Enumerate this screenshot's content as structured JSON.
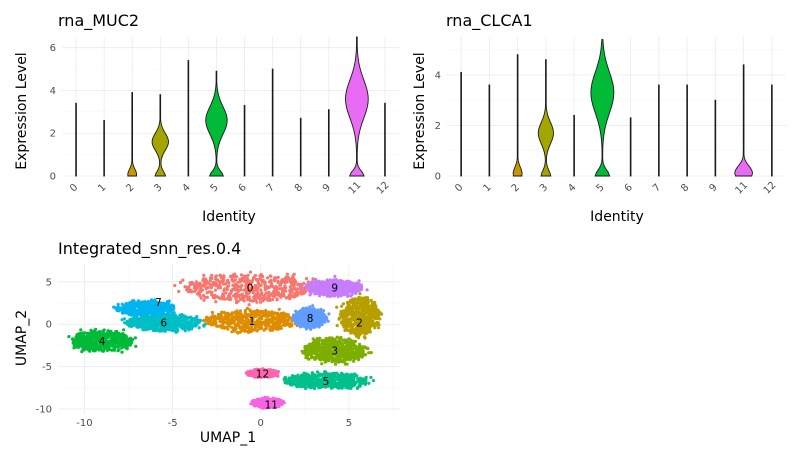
{
  "chart_data": [
    {
      "type": "violin",
      "title": "rna_MUC2",
      "xlabel": "Identity",
      "ylabel": "Expression Level",
      "categories": [
        "0",
        "1",
        "2",
        "3",
        "4",
        "5",
        "6",
        "7",
        "8",
        "9",
        "11",
        "12"
      ],
      "ylim": [
        0,
        6.5
      ],
      "yticks": [
        0,
        2,
        4,
        6
      ],
      "max_values": [
        3.4,
        2.6,
        3.9,
        3.8,
        5.4,
        4.9,
        3.3,
        5.0,
        2.7,
        3.1,
        6.5,
        3.4
      ],
      "shape_bulges": [
        0,
        0,
        0.12,
        1.6,
        0,
        2.6,
        0,
        0,
        0,
        0,
        3.6,
        0
      ],
      "violin_widths": [
        0.02,
        0.02,
        0.35,
        0.65,
        0.02,
        0.85,
        0.02,
        0.02,
        0.02,
        0.02,
        0.9,
        0.02
      ],
      "colors": [
        "#F8766D",
        "#E58700",
        "#C99800",
        "#A3A500",
        "#6BB100",
        "#00BA38",
        "#00BF7D",
        "#00C0AF",
        "#00BCD8",
        "#00B0F6",
        "#E76BF3",
        "#FF67A4"
      ]
    },
    {
      "type": "violin",
      "title": "rna_CLCA1",
      "xlabel": "Identity",
      "ylabel": "Expression Level",
      "categories": [
        "0",
        "1",
        "2",
        "3",
        "4",
        "5",
        "6",
        "7",
        "8",
        "9",
        "11",
        "12"
      ],
      "ylim": [
        0,
        5.5
      ],
      "yticks": [
        0,
        2,
        4
      ],
      "max_values": [
        4.1,
        3.6,
        4.8,
        4.6,
        2.4,
        5.4,
        2.3,
        3.6,
        3.6,
        3.0,
        4.4,
        3.6
      ],
      "shape_bulges": [
        0,
        0,
        0.15,
        1.7,
        0,
        3.3,
        0,
        0,
        0,
        0,
        0.2,
        0
      ],
      "violin_widths": [
        0.02,
        0.02,
        0.35,
        0.6,
        0.02,
        0.9,
        0.02,
        0.02,
        0.02,
        0.02,
        0.7,
        0.02
      ],
      "colors": [
        "#F8766D",
        "#E58700",
        "#C99800",
        "#A3A500",
        "#6BB100",
        "#00BA38",
        "#00BF7D",
        "#00C0AF",
        "#00BCD8",
        "#00B0F6",
        "#E76BF3",
        "#FF67A4"
      ]
    },
    {
      "type": "scatter",
      "title": "Integrated_snn_res.0.4",
      "xlabel": "UMAP_1",
      "ylabel": "UMAP_2",
      "xlim": [
        -11.5,
        7.9
      ],
      "ylim": [
        -10.6,
        7.1
      ],
      "xticks": [
        -10,
        -5,
        0,
        5
      ],
      "yticks": [
        -10,
        -5,
        0,
        5
      ],
      "clusters": [
        {
          "label": "0",
          "color": "#F8766D",
          "center": [
            -0.6,
            4.3
          ],
          "spread": [
            3.6,
            1.6
          ]
        },
        {
          "label": "1",
          "color": "#DE8C00",
          "center": [
            -0.5,
            0.4
          ],
          "spread": [
            2.6,
            1.2
          ]
        },
        {
          "label": "2",
          "color": "#B79F00",
          "center": [
            5.6,
            1.0
          ],
          "spread": [
            1.1,
            2.2
          ]
        },
        {
          "label": "3",
          "color": "#7CAE00",
          "center": [
            4.2,
            -3.1
          ],
          "spread": [
            1.7,
            1.4
          ]
        },
        {
          "label": "4",
          "color": "#00BA38",
          "center": [
            -9.0,
            -2.0
          ],
          "spread": [
            1.7,
            1.2
          ]
        },
        {
          "label": "5",
          "color": "#00C08B",
          "center": [
            3.7,
            -6.7
          ],
          "spread": [
            2.3,
            0.9
          ]
        },
        {
          "label": "6",
          "color": "#00BFC4",
          "center": [
            -5.5,
            0.2
          ],
          "spread": [
            2.0,
            1.0
          ]
        },
        {
          "label": "7",
          "color": "#00B4F0",
          "center": [
            -6.5,
            1.9
          ],
          "spread": [
            1.6,
            0.8
          ]
        },
        {
          "label": "8",
          "color": "#619CFF",
          "center": [
            2.8,
            0.7
          ],
          "spread": [
            0.9,
            1.1
          ]
        },
        {
          "label": "9",
          "color": "#C77CFF",
          "center": [
            4.2,
            4.3
          ],
          "spread": [
            1.5,
            0.9
          ]
        },
        {
          "label": "11",
          "color": "#F564E3",
          "center": [
            0.4,
            -9.3
          ],
          "spread": [
            0.8,
            0.5
          ]
        },
        {
          "label": "12",
          "color": "#FF64B0",
          "center": [
            0.1,
            -5.8
          ],
          "spread": [
            0.8,
            0.4
          ]
        }
      ],
      "label_positions": [
        {
          "label": "0",
          "pos": [
            -0.6,
            4.3
          ]
        },
        {
          "label": "1",
          "pos": [
            -0.5,
            0.4
          ]
        },
        {
          "label": "2",
          "pos": [
            5.6,
            0.2
          ]
        },
        {
          "label": "3",
          "pos": [
            4.2,
            -3.1
          ]
        },
        {
          "label": "4",
          "pos": [
            -9.0,
            -2.0
          ]
        },
        {
          "label": "5",
          "pos": [
            3.7,
            -6.7
          ]
        },
        {
          "label": "6",
          "pos": [
            -5.5,
            0.2
          ]
        },
        {
          "label": "7",
          "pos": [
            -5.8,
            2.6
          ]
        },
        {
          "label": "8",
          "pos": [
            2.8,
            0.7
          ]
        },
        {
          "label": "9",
          "pos": [
            4.2,
            4.3
          ]
        },
        {
          "label": "11",
          "pos": [
            0.6,
            -9.5
          ]
        },
        {
          "label": "12",
          "pos": [
            0.1,
            -5.8
          ]
        }
      ]
    }
  ]
}
